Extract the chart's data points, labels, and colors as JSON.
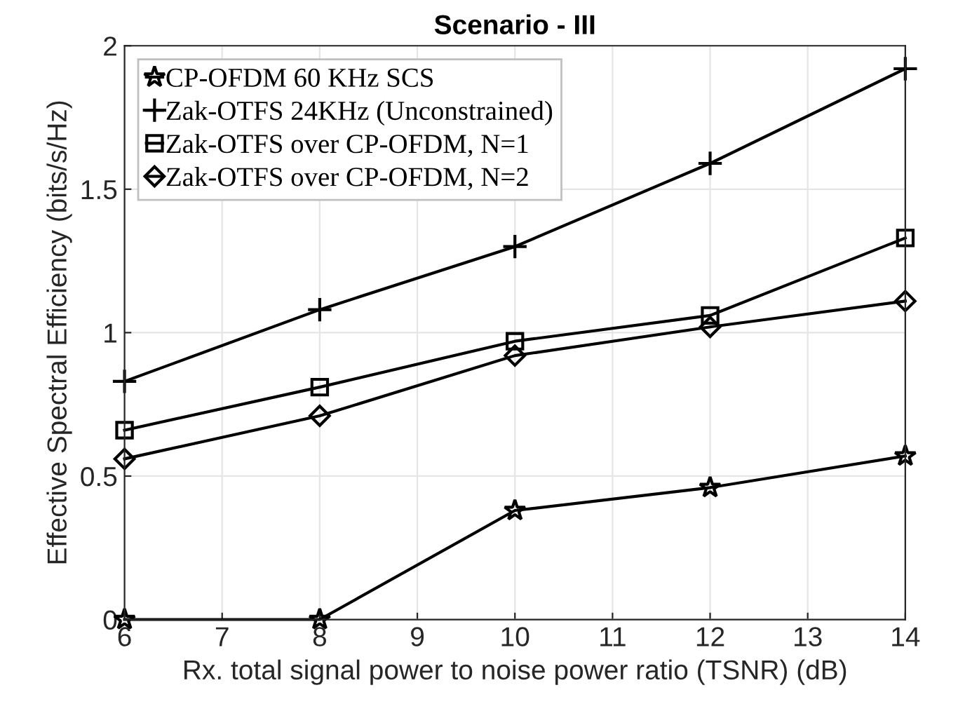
{
  "chart_data": {
    "type": "line",
    "title": "Scenario - III",
    "xlabel": "Rx. total signal power to noise power ratio (TSNR) (dB)",
    "ylabel": "Effective Spectral Efficiency (bits/s/Hz)",
    "x": [
      6,
      8,
      10,
      12,
      14
    ],
    "series": [
      {
        "name": "CP-OFDM 60 KHz SCS",
        "color": "#000000",
        "marker": "star",
        "values": [
          0,
          0,
          0.38,
          0.46,
          0.57
        ]
      },
      {
        "name": "Zak-OTFS 24KHz (Unconstrained)",
        "color": "#000000",
        "marker": "cross",
        "values": [
          0.83,
          1.08,
          1.3,
          1.59,
          1.92
        ]
      },
      {
        "name": "Zak-OTFS over CP-OFDM, N=1",
        "color": "#000000",
        "marker": "square",
        "values": [
          0.66,
          0.81,
          0.97,
          1.06,
          1.33
        ]
      },
      {
        "name": "Zak-OTFS over CP-OFDM, N=2",
        "color": "#000000",
        "marker": "diamond",
        "values": [
          0.56,
          0.71,
          0.92,
          1.02,
          1.11
        ]
      }
    ],
    "xlim": [
      6,
      14
    ],
    "xticks": [
      6,
      7,
      8,
      9,
      10,
      11,
      12,
      13,
      14
    ],
    "ylim": [
      0,
      2
    ],
    "yticks": [
      0,
      0.5,
      1,
      1.5,
      2
    ],
    "grid": true,
    "legend": "top left",
    "line_style": "solid"
  }
}
